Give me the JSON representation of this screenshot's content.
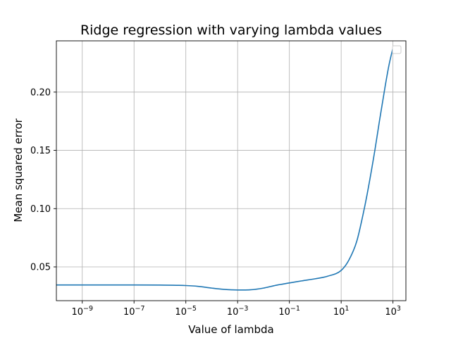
{
  "chart_data": {
    "type": "line",
    "title": "Ridge regression with varying lambda values",
    "xlabel": "Value of lambda",
    "ylabel": "Mean squared error",
    "xscale": "log",
    "xlim": [
      1e-10,
      3162
    ],
    "ylim": [
      0.021,
      0.244
    ],
    "grid": true,
    "legend": "top-right (empty)",
    "x_ticks": [
      {
        "value": 1e-09,
        "base": "10",
        "exp": "−9"
      },
      {
        "value": 1e-07,
        "base": "10",
        "exp": "−7"
      },
      {
        "value": 1e-05,
        "base": "10",
        "exp": "−5"
      },
      {
        "value": 0.001,
        "base": "10",
        "exp": "−3"
      },
      {
        "value": 0.1,
        "base": "10",
        "exp": "−1"
      },
      {
        "value": 10,
        "base": "10",
        "exp": "1"
      },
      {
        "value": 1000,
        "base": "10",
        "exp": "3"
      }
    ],
    "y_ticks": [
      {
        "value": 0.05,
        "label": "0.05"
      },
      {
        "value": 0.1,
        "label": "0.10"
      },
      {
        "value": 0.15,
        "label": "0.15"
      },
      {
        "value": 0.2,
        "label": "0.20"
      }
    ],
    "series": [
      {
        "color": "#1f77b4",
        "x": [
          1e-10,
          1e-09,
          1e-08,
          1e-07,
          1e-06,
          1e-05,
          3e-05,
          0.0001,
          0.0003,
          0.001,
          0.003,
          0.01,
          0.03,
          0.1,
          0.3,
          1,
          3,
          10,
          20,
          40,
          70,
          100,
          200,
          300,
          500,
          700,
          1000
        ],
        "y": [
          0.0345,
          0.0345,
          0.0345,
          0.0345,
          0.0344,
          0.034,
          0.0333,
          0.0318,
          0.0307,
          0.0302,
          0.0303,
          0.0318,
          0.0342,
          0.0362,
          0.038,
          0.0398,
          0.042,
          0.047,
          0.056,
          0.072,
          0.095,
          0.112,
          0.15,
          0.175,
          0.205,
          0.223,
          0.238
        ]
      }
    ]
  }
}
